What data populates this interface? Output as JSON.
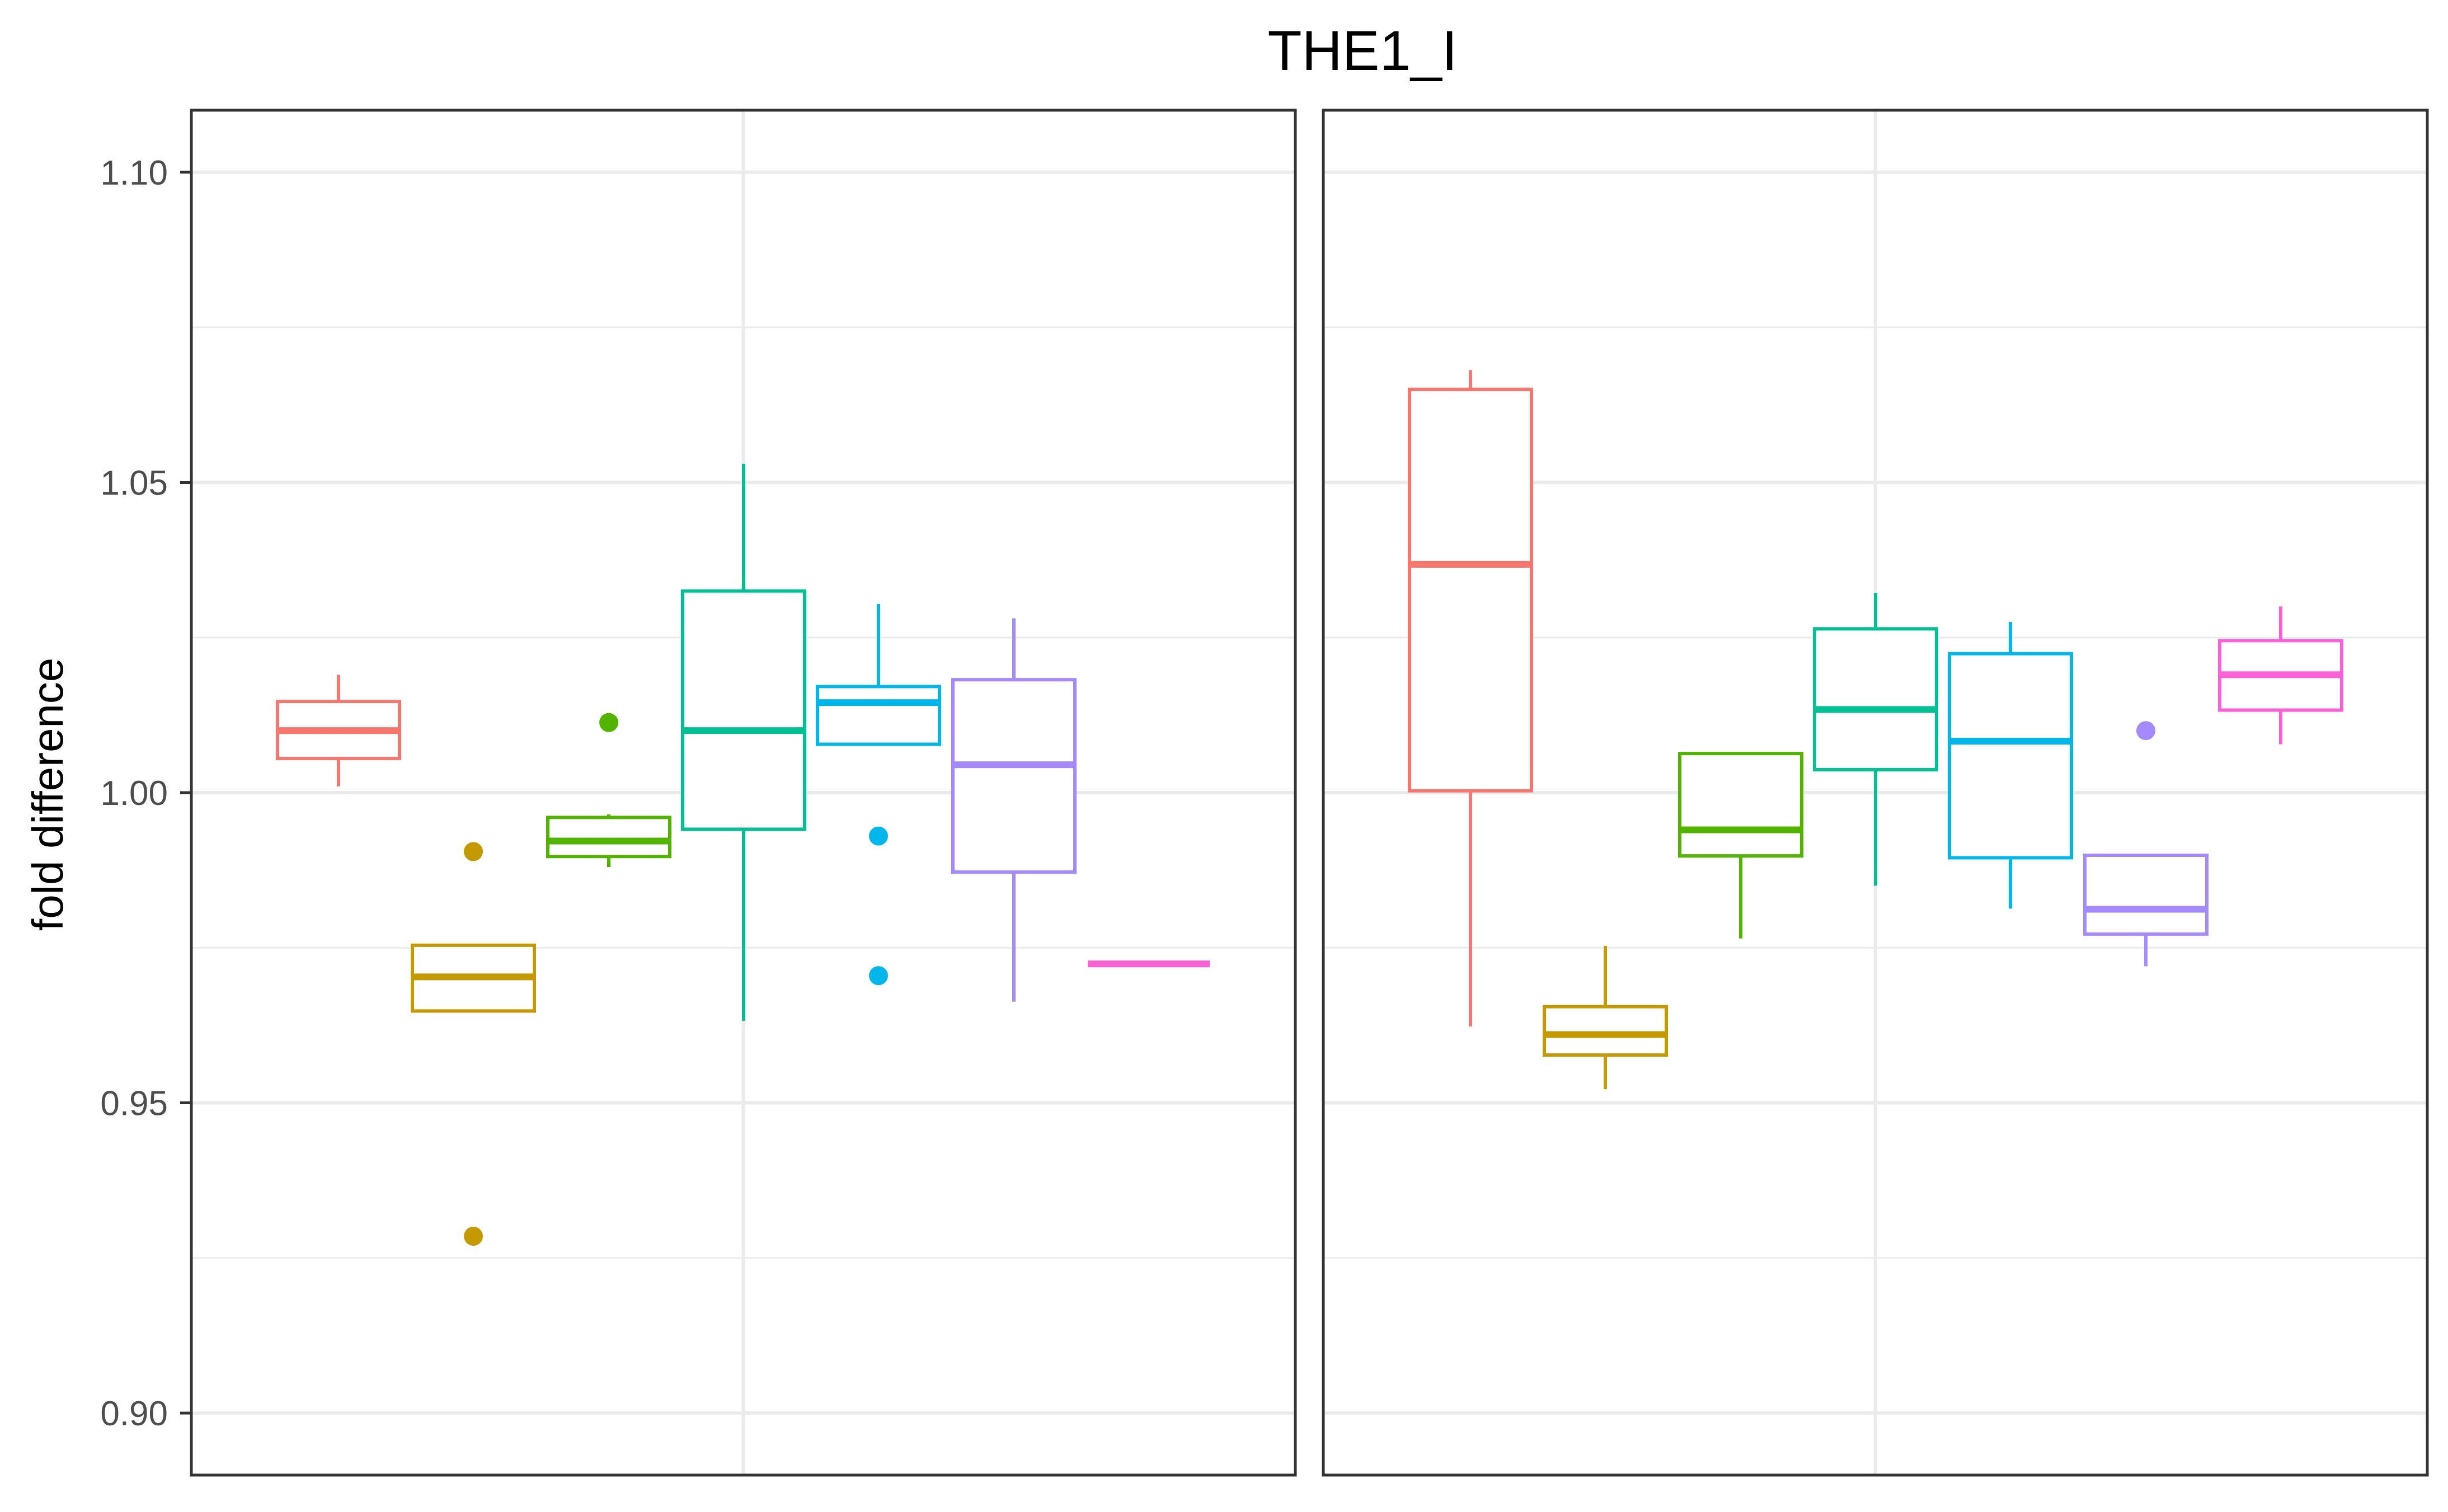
{
  "chart_data": {
    "type": "box",
    "title": "THE1_I",
    "ylabel": "fold difference",
    "xlabel": "",
    "ylim": [
      0.89,
      1.11
    ],
    "yticks": [
      0.9,
      0.95,
      1.0,
      1.05,
      1.1
    ],
    "ytick_labels": [
      "0.90",
      "0.95",
      "1.00",
      "1.05",
      "1.10"
    ],
    "grid": true,
    "legend": "none",
    "colors": [
      "#F8766D",
      "#C49A00",
      "#53B400",
      "#00C094",
      "#00B6EB",
      "#A58AFF",
      "#FB61D7"
    ],
    "panels": [
      {
        "boxes": [
          {
            "min": 1.001,
            "q1": 1.0055,
            "median": 1.01,
            "q3": 1.0147,
            "max": 1.019,
            "outliers": []
          },
          {
            "min": 0.9648,
            "q1": 0.9648,
            "median": 0.9703,
            "q3": 0.9754,
            "max": 0.9754,
            "outliers": [
              0.9905,
              0.9285
            ]
          },
          {
            "min": 0.988,
            "q1": 0.9897,
            "median": 0.9922,
            "q3": 0.996,
            "max": 0.9965,
            "outliers": [
              1.0113
            ]
          },
          {
            "min": 0.9632,
            "q1": 0.9941,
            "median": 1.01,
            "q3": 1.0325,
            "max": 1.053,
            "outliers": []
          },
          {
            "min": 1.0078,
            "q1": 1.0078,
            "median": 1.0145,
            "q3": 1.0171,
            "max": 1.0304,
            "outliers": [
              0.993,
              0.9705
            ]
          },
          {
            "min": 0.9663,
            "q1": 0.9872,
            "median": 1.0045,
            "q3": 1.0182,
            "max": 1.0281,
            "outliers": []
          },
          {
            "min": 0.9724,
            "q1": 0.9724,
            "median": 0.9724,
            "q3": 0.9724,
            "max": 0.9724,
            "outliers": []
          }
        ]
      },
      {
        "boxes": [
          {
            "min": 0.9623,
            "q1": 1.0003,
            "median": 1.0368,
            "q3": 1.065,
            "max": 1.0681,
            "outliers": []
          },
          {
            "min": 0.9522,
            "q1": 0.9577,
            "median": 0.961,
            "q3": 0.9655,
            "max": 0.9753,
            "outliers": []
          },
          {
            "min": 0.9765,
            "q1": 0.9898,
            "median": 0.994,
            "q3": 1.0063,
            "max": 1.0063,
            "outliers": []
          },
          {
            "min": 0.985,
            "q1": 1.0037,
            "median": 1.0134,
            "q3": 1.0264,
            "max": 1.0322,
            "outliers": []
          },
          {
            "min": 0.9813,
            "q1": 0.9895,
            "median": 1.0083,
            "q3": 1.0224,
            "max": 1.0275,
            "outliers": []
          },
          {
            "min": 0.972,
            "q1": 0.9772,
            "median": 0.9812,
            "q3": 0.9899,
            "max": 0.9899,
            "outliers": [
              1.01
            ]
          },
          {
            "min": 1.0078,
            "q1": 1.0133,
            "median": 1.019,
            "q3": 1.0245,
            "max": 1.03,
            "outliers": []
          }
        ]
      }
    ]
  }
}
